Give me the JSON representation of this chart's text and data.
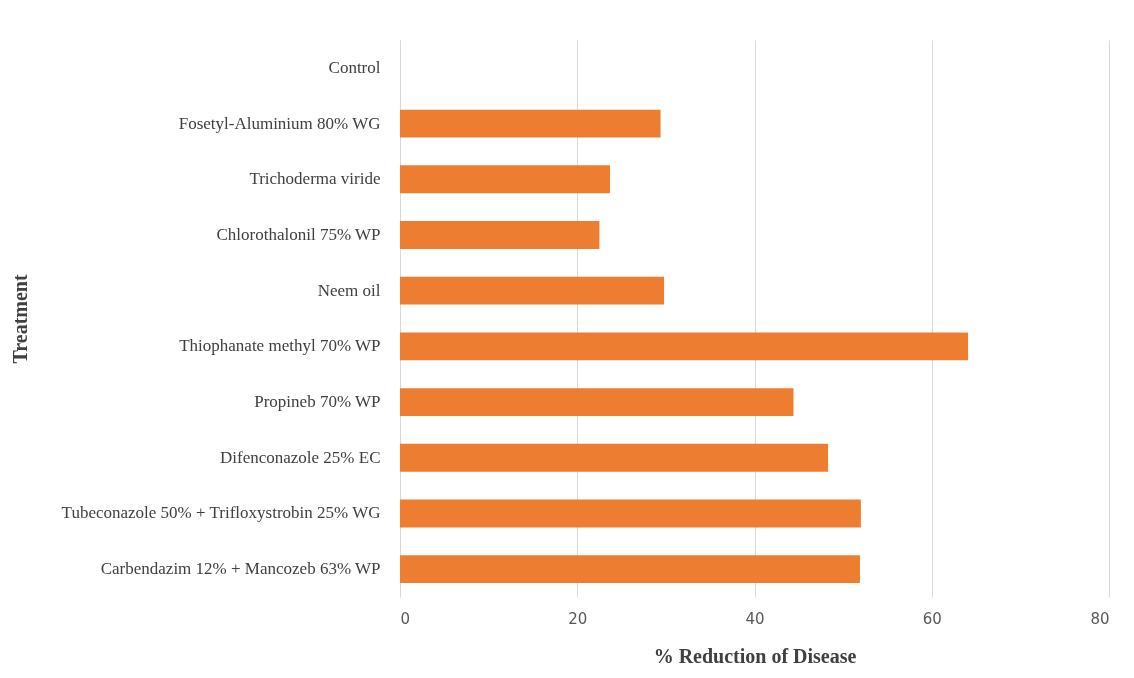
{
  "chart_data": {
    "type": "bar",
    "orientation": "horizontal",
    "xlabel": "% Reduction of Disease",
    "ylabel": "Treatment",
    "categories": [
      "Control",
      "Fosetyl-Aluminium 80% WG",
      "Trichoderma viride",
      "Chlorothalonil 75% WP",
      "Neem oil",
      "Thiophanate methyl 70% WP",
      "Propineb 70% WP",
      "Difenconazole 25% EC",
      "Tubeconazole 50% + Trifloxystrobin 25% WG",
      "Carbendazim 12% + Mancozeb 63% WP"
    ],
    "values": [
      0,
      29.4,
      23.7,
      22.5,
      29.8,
      64.1,
      44.4,
      48.3,
      52.0,
      51.9
    ],
    "color": "#ed7d31",
    "xlim": [
      0,
      80
    ],
    "xticks": [
      0,
      20,
      40,
      60,
      80
    ],
    "grid": "x"
  }
}
